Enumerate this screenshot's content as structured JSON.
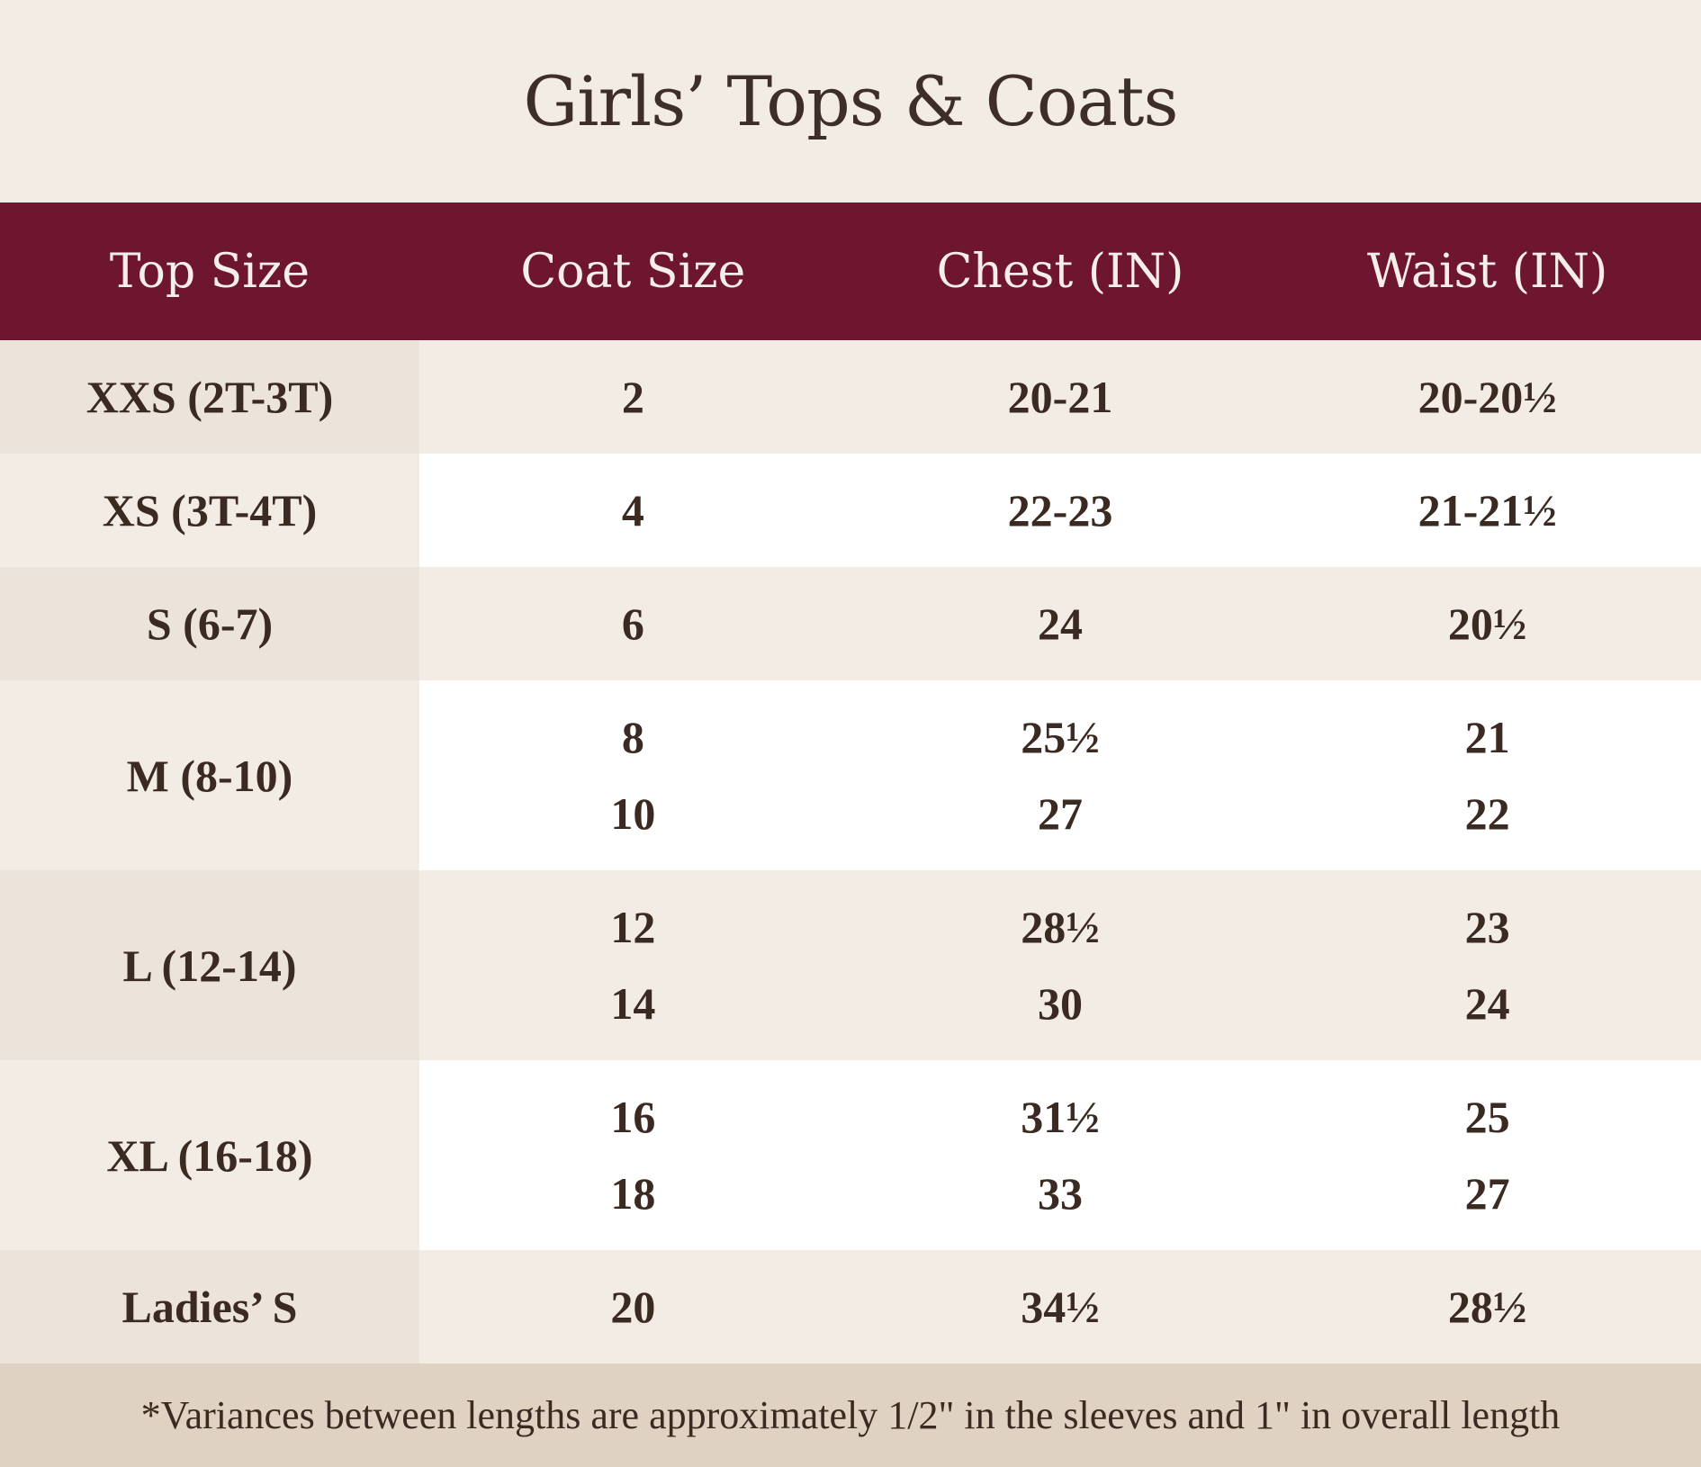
{
  "title": "Girls’ Tops & Coats",
  "headers": [
    "Top Size",
    "Coat Size",
    "Chest (IN)",
    "Waist (IN)"
  ],
  "rows": [
    {
      "top_size": "XXS (2T-3T)",
      "coat": [
        "2"
      ],
      "chest": [
        "20-21"
      ],
      "waist": [
        "20-20½"
      ]
    },
    {
      "top_size": "XS (3T-4T)",
      "coat": [
        "4"
      ],
      "chest": [
        "22-23"
      ],
      "waist": [
        "21-21½"
      ]
    },
    {
      "top_size": "S (6-7)",
      "coat": [
        "6"
      ],
      "chest": [
        "24"
      ],
      "waist": [
        "20½"
      ]
    },
    {
      "top_size": "M (8-10)",
      "coat": [
        "8",
        "10"
      ],
      "chest": [
        "25½",
        "27"
      ],
      "waist": [
        "21",
        "22"
      ]
    },
    {
      "top_size": "L (12-14)",
      "coat": [
        "12",
        "14"
      ],
      "chest": [
        "28½",
        "30"
      ],
      "waist": [
        "23",
        "24"
      ]
    },
    {
      "top_size": "XL (16-18)",
      "coat": [
        "16",
        "18"
      ],
      "chest": [
        "31½",
        "33"
      ],
      "waist": [
        "25",
        "27"
      ]
    },
    {
      "top_size": "Ladies’ S",
      "coat": [
        "20"
      ],
      "chest": [
        "34½"
      ],
      "waist": [
        "28½"
      ]
    }
  ],
  "footnote": "*Variances between lengths are approximately 1/2\" in the sleeves and 1\" in overall length",
  "colors": {
    "header_bg": "#6e1630",
    "page_bg": "#f2ece5",
    "footer_bg": "#dfd2c2"
  }
}
